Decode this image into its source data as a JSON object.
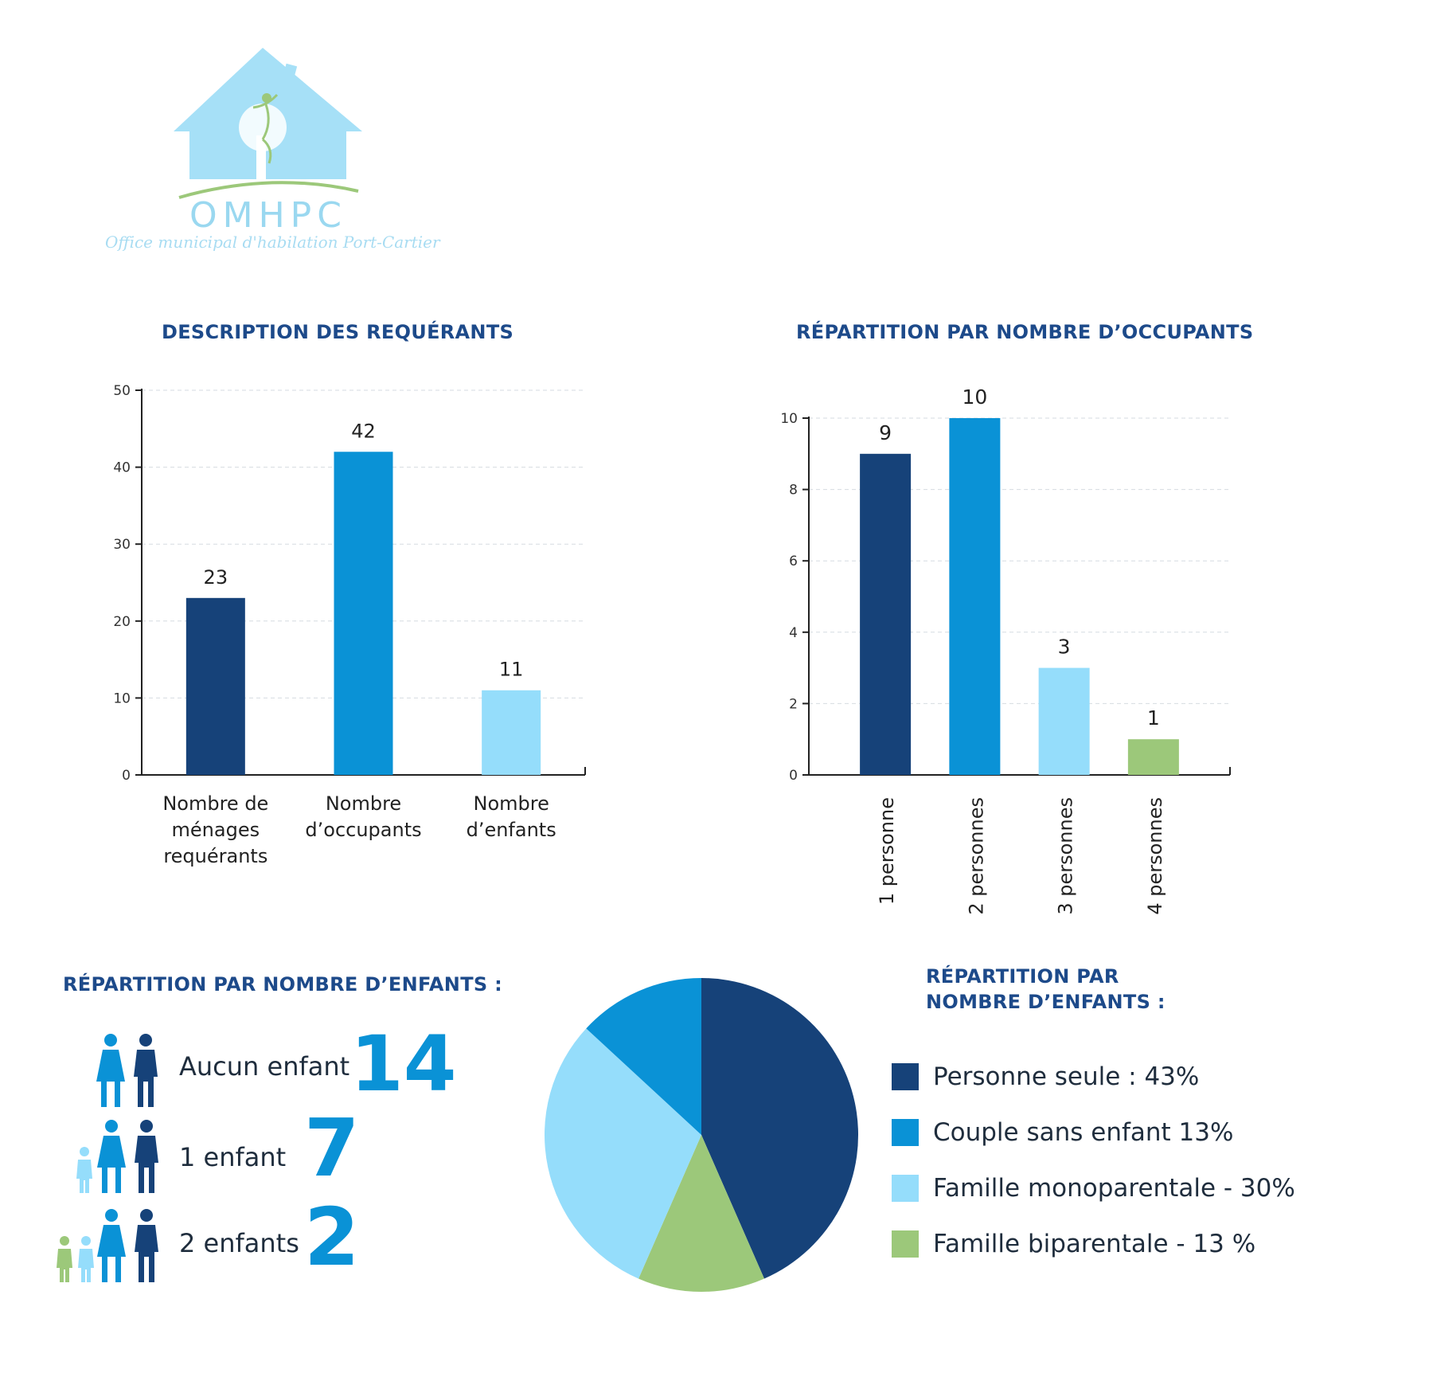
{
  "logo": {
    "name": "OMHPC",
    "subtitle": "Office municipal d'habilation Port-Cartier"
  },
  "colors": {
    "navy": "#164279",
    "blue": "#0a92d6",
    "light_blue": "#95ddfb",
    "green": "#9cc87a",
    "title": "#1d4a8a"
  },
  "chart_data": [
    {
      "type": "bar",
      "title": "DESCRIPTION DES REQUÉRANTS",
      "categories": [
        [
          "Nombre de",
          "ménages",
          "requérants"
        ],
        [
          "Nombre",
          "d’occupants"
        ],
        [
          "Nombre",
          "d’enfants"
        ]
      ],
      "values": [
        23,
        42,
        11
      ],
      "value_labels": [
        "23",
        "42",
        "11"
      ],
      "colors": [
        "#164279",
        "#0a92d6",
        "#95ddfb"
      ],
      "ylim": [
        0,
        50
      ],
      "yticks": [
        "0",
        "10",
        "20",
        "30",
        "40",
        "50"
      ],
      "grid": true
    },
    {
      "type": "bar",
      "title": "RÉPARTITION PAR NOMBRE D’OCCUPANTS",
      "categories": [
        "1 personne",
        "2 personnes",
        "3 personnes",
        "4 personnes"
      ],
      "values": [
        9,
        10,
        3,
        1
      ],
      "value_labels": [
        "9",
        "10",
        "3",
        "1"
      ],
      "colors": [
        "#164279",
        "#0a92d6",
        "#95ddfb",
        "#9cc87a"
      ],
      "ylim": [
        0,
        10
      ],
      "yticks": [
        "0",
        "2",
        "4",
        "6",
        "8",
        "10"
      ],
      "grid": true
    },
    {
      "type": "pie",
      "title": [
        "RÉPARTITION PAR",
        "NOMBRE D’ENFANTS :"
      ],
      "slices": [
        {
          "label": "Personne seule : 43%",
          "value": 43,
          "color": "#164279"
        },
        {
          "label": "Famille biparentale - 13 %",
          "value": 13,
          "color": "#9cc87a"
        },
        {
          "label": "Famille monoparentale - 30%",
          "value": 30,
          "color": "#95ddfb"
        },
        {
          "label": "Couple sans enfant 13%",
          "value": 13,
          "color": "#0a92d6"
        }
      ],
      "legend_order": [
        "Personne seule : 43%",
        "Couple sans enfant 13%",
        "Famille monoparentale - 30%",
        "Famille biparentale - 13 %"
      ],
      "legend_colors": [
        "#164279",
        "#0a92d6",
        "#95ddfb",
        "#9cc87a"
      ],
      "legend_placement": "right"
    }
  ],
  "children": {
    "title": "RÉPARTITION PAR NOMBRE D’ENFANTS :",
    "rows": [
      {
        "label": "Aucun enfant",
        "count": "14",
        "icon": "couple-icon"
      },
      {
        "label": "1 enfant",
        "count": "7",
        "icon": "family-one-child-icon"
      },
      {
        "label": "2 enfants",
        "count": "2",
        "icon": "family-two-children-icon"
      }
    ]
  }
}
